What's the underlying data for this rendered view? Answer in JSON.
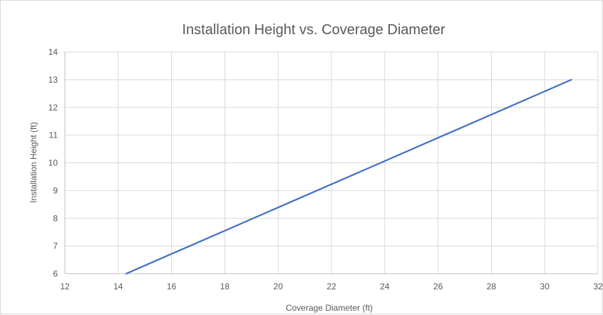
{
  "chart_data": {
    "type": "line",
    "title": "Installation Height vs. Coverage Diameter",
    "xlabel": "Coverage Diameter (ft)",
    "ylabel": "Installation Height (ft)",
    "xlim": [
      12,
      32
    ],
    "ylim": [
      6,
      14
    ],
    "x_ticks": [
      12,
      14,
      16,
      18,
      20,
      22,
      24,
      26,
      28,
      30,
      32
    ],
    "y_ticks": [
      6,
      7,
      8,
      9,
      10,
      11,
      12,
      13,
      14
    ],
    "grid": true,
    "legend": "none",
    "series": [
      {
        "color": "#4472c4",
        "x": [
          14.3,
          31
        ],
        "y": [
          6,
          13
        ]
      }
    ]
  }
}
